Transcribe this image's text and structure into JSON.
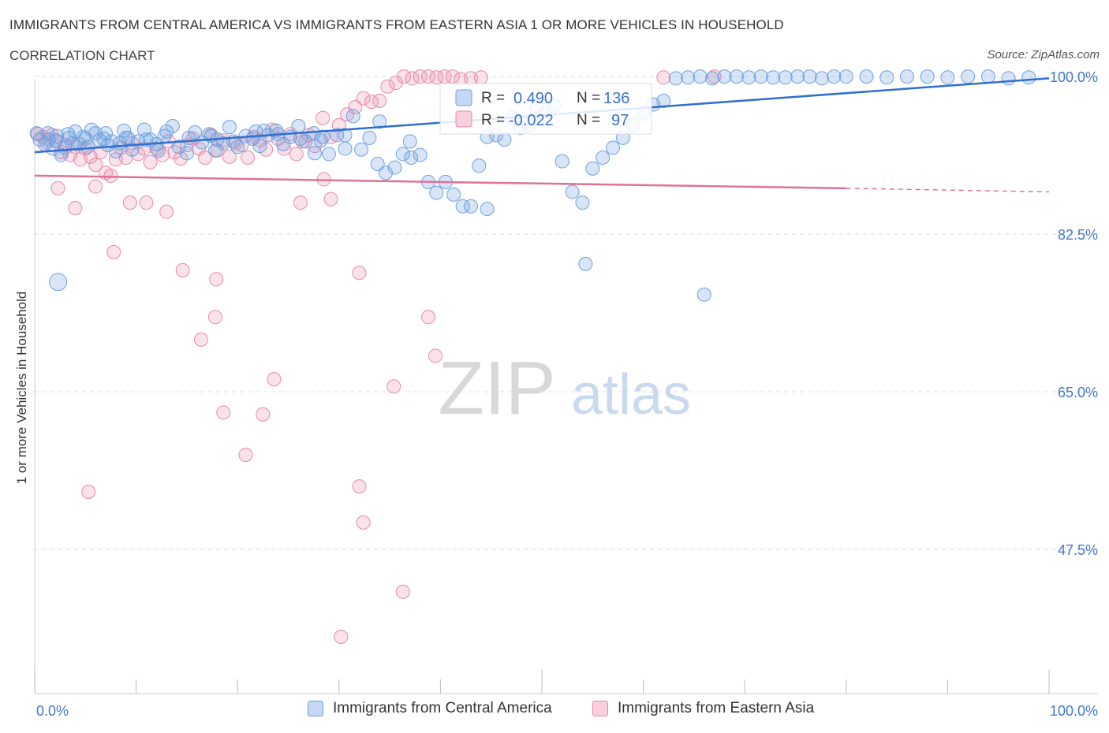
{
  "header": {
    "title": "IMMIGRANTS FROM CENTRAL AMERICA VS IMMIGRANTS FROM EASTERN ASIA 1 OR MORE VEHICLES IN HOUSEHOLD",
    "subtitle": "CORRELATION CHART",
    "source": "Source: ZipAtlas.com"
  },
  "watermark": {
    "zip": "ZIP",
    "atlas": "atlas"
  },
  "colors": {
    "blue": "#6fa1e0",
    "blue_fill": "rgba(111,161,224,0.28)",
    "blue_line": "#2f6fd0",
    "pink": "#e88aaa",
    "pink_fill": "rgba(232,138,170,0.25)",
    "pink_line": "#e0729a",
    "axis_text": "#4477cc",
    "grid": "#dddddd"
  },
  "legend_box": {
    "rows": [
      {
        "r_label": "R =",
        "r_value": "0.490",
        "n_label": "N =",
        "n_value": "136"
      },
      {
        "r_label": "R =",
        "r_value": "-0.022",
        "n_label": "N =",
        "n_value": "97"
      }
    ]
  },
  "bottom_legend": [
    "Immigrants from Central America",
    "Immigrants from Eastern Asia"
  ],
  "chart_data": {
    "type": "scatter",
    "xlabel": "",
    "ylabel": "1 or more Vehicles in Household",
    "xlim": [
      0,
      100
    ],
    "ylim": [
      31.5,
      101.5
    ],
    "x_tick_labels": [
      "0.0%",
      "100.0%"
    ],
    "y_ticks": [
      47.5,
      65.0,
      82.5,
      100.0
    ],
    "y_tick_labels": [
      "47.5%",
      "65.0%",
      "82.5%",
      "100.0%"
    ],
    "grid": true,
    "series": [
      {
        "name": "Immigrants from Central America",
        "trend": {
          "x": [
            0,
            100
          ],
          "y": [
            91.6,
            99.8
          ]
        },
        "points": [
          [
            0.2,
            93.7
          ],
          [
            0.5,
            93.0
          ],
          [
            1.0,
            92.5
          ],
          [
            1.4,
            93.0
          ],
          [
            1.8,
            92.0
          ],
          [
            2.2,
            93.4
          ],
          [
            2.6,
            91.3
          ],
          [
            3.0,
            92.1
          ],
          [
            3.4,
            93.2
          ],
          [
            3.7,
            92.6
          ],
          [
            4.0,
            93.9
          ],
          [
            4.4,
            92.5
          ],
          [
            4.8,
            93.3
          ],
          [
            5.2,
            92.2
          ],
          [
            5.6,
            94.1
          ],
          [
            6.0,
            93.7
          ],
          [
            6.4,
            92.9
          ],
          [
            6.8,
            93.1
          ],
          [
            7.2,
            92.4
          ],
          [
            7.6,
            92.8
          ],
          [
            8.0,
            91.7
          ],
          [
            8.4,
            92.6
          ],
          [
            8.8,
            94.0
          ],
          [
            9.2,
            93.2
          ],
          [
            9.6,
            91.9
          ],
          [
            10.2,
            92.8
          ],
          [
            10.8,
            94.1
          ],
          [
            11.4,
            93.0
          ],
          [
            12.0,
            92.5
          ],
          [
            12.8,
            93.4
          ],
          [
            13.6,
            94.5
          ],
          [
            14.2,
            92.2
          ],
          [
            15.0,
            91.5
          ],
          [
            15.8,
            93.8
          ],
          [
            16.5,
            92.7
          ],
          [
            17.2,
            93.6
          ],
          [
            18.0,
            93.0
          ],
          [
            18.6,
            92.6
          ],
          [
            19.2,
            94.4
          ],
          [
            20.0,
            92.2
          ],
          [
            20.8,
            93.4
          ],
          [
            21.5,
            93.1
          ],
          [
            22.2,
            92.3
          ],
          [
            23.0,
            93.5
          ],
          [
            23.8,
            94.0
          ],
          [
            24.5,
            92.5
          ],
          [
            25.2,
            93.3
          ],
          [
            26.0,
            94.5
          ],
          [
            26.7,
            92.8
          ],
          [
            27.5,
            93.7
          ],
          [
            28.2,
            92.9
          ],
          [
            29.0,
            91.4
          ],
          [
            29.8,
            93.5
          ],
          [
            30.6,
            92.0
          ],
          [
            31.4,
            95.6
          ],
          [
            32.2,
            91.9
          ],
          [
            33.0,
            93.2
          ],
          [
            33.8,
            90.3
          ],
          [
            34.6,
            89.3
          ],
          [
            35.5,
            89.9
          ],
          [
            36.3,
            91.4
          ],
          [
            37.1,
            91.0
          ],
          [
            38.0,
            91.3
          ],
          [
            38.8,
            88.3
          ],
          [
            39.6,
            87.1
          ],
          [
            40.5,
            88.3
          ],
          [
            41.3,
            86.9
          ],
          [
            42.2,
            85.6
          ],
          [
            43.0,
            85.6
          ],
          [
            43.8,
            90.1
          ],
          [
            44.6,
            93.3
          ],
          [
            45.5,
            93.5
          ],
          [
            46.3,
            93.0
          ],
          [
            47.1,
            95.4
          ],
          [
            47.9,
            94.3
          ],
          [
            48.7,
            94.6
          ],
          [
            49.5,
            96.7
          ],
          [
            50.3,
            95.9
          ],
          [
            51.2,
            96.8
          ],
          [
            52.0,
            90.6
          ],
          [
            53.0,
            87.2
          ],
          [
            54.0,
            86.0
          ],
          [
            55.0,
            89.8
          ],
          [
            56.0,
            91.0
          ],
          [
            57.0,
            92.1
          ],
          [
            58.0,
            93.2
          ],
          [
            59.0,
            94.6
          ],
          [
            60.0,
            95.9
          ],
          [
            61.0,
            96.9
          ],
          [
            62.0,
            97.3
          ],
          [
            63.2,
            99.8
          ],
          [
            64.4,
            99.9
          ],
          [
            65.6,
            100.0
          ],
          [
            66.8,
            99.8
          ],
          [
            68.0,
            100.0
          ],
          [
            69.2,
            100.0
          ],
          [
            70.4,
            99.9
          ],
          [
            71.6,
            100.0
          ],
          [
            72.8,
            99.9
          ],
          [
            74.0,
            99.9
          ],
          [
            75.2,
            100.0
          ],
          [
            76.4,
            100.0
          ],
          [
            77.6,
            99.8
          ],
          [
            78.8,
            100.0
          ],
          [
            80.0,
            100.0
          ],
          [
            82.0,
            100.0
          ],
          [
            84.0,
            99.9
          ],
          [
            86.0,
            100.0
          ],
          [
            88.0,
            100.0
          ],
          [
            90.0,
            99.9
          ],
          [
            92.0,
            100.0
          ],
          [
            94.0,
            100.0
          ],
          [
            96.0,
            99.8
          ],
          [
            98.0,
            99.9
          ],
          [
            1.3,
            93.7
          ],
          [
            2.1,
            92.9
          ],
          [
            3.3,
            93.6
          ],
          [
            5.0,
            93.1
          ],
          [
            7.0,
            93.7
          ],
          [
            9.0,
            93.2
          ],
          [
            11.0,
            93.0
          ],
          [
            13.0,
            93.9
          ],
          [
            15.2,
            93.2
          ],
          [
            17.4,
            93.4
          ],
          [
            19.6,
            92.8
          ],
          [
            21.8,
            93.9
          ],
          [
            24.0,
            93.6
          ],
          [
            26.2,
            93.1
          ],
          [
            28.4,
            93.3
          ],
          [
            30.6,
            93.5
          ],
          [
            12.2,
            91.8
          ],
          [
            17.8,
            91.8
          ],
          [
            22.6,
            94.0
          ],
          [
            27.6,
            91.5
          ],
          [
            34.0,
            95.0
          ],
          [
            37.0,
            92.8
          ],
          [
            44.6,
            85.3
          ],
          [
            54.3,
            79.2
          ],
          [
            66.0,
            75.8
          ],
          [
            2.3,
            77.2
          ]
        ]
      },
      {
        "name": "Immigrants from Eastern Asia",
        "trend": {
          "x": [
            0,
            80
          ],
          "y": [
            89.0,
            87.6
          ]
        },
        "trend_dashed": {
          "x": [
            80,
            100
          ],
          "y": [
            87.6,
            87.2
          ]
        },
        "points": [
          [
            0.3,
            93.6
          ],
          [
            0.8,
            93.3
          ],
          [
            1.2,
            92.7
          ],
          [
            1.7,
            93.5
          ],
          [
            2.1,
            92.8
          ],
          [
            2.6,
            91.6
          ],
          [
            3.0,
            92.4
          ],
          [
            3.5,
            91.3
          ],
          [
            4.0,
            92.2
          ],
          [
            4.5,
            90.8
          ],
          [
            5.0,
            92.0
          ],
          [
            5.5,
            91.1
          ],
          [
            6.0,
            90.2
          ],
          [
            6.5,
            91.6
          ],
          [
            7.0,
            89.3
          ],
          [
            7.5,
            89.0
          ],
          [
            8.0,
            90.8
          ],
          [
            8.5,
            92.1
          ],
          [
            9.0,
            91.0
          ],
          [
            9.6,
            92.6
          ],
          [
            10.2,
            91.4
          ],
          [
            10.8,
            92.0
          ],
          [
            11.4,
            90.5
          ],
          [
            12.0,
            92.0
          ],
          [
            12.6,
            91.3
          ],
          [
            13.2,
            92.8
          ],
          [
            13.8,
            91.6
          ],
          [
            14.4,
            90.9
          ],
          [
            15.0,
            92.4
          ],
          [
            15.6,
            93.1
          ],
          [
            16.2,
            92.0
          ],
          [
            16.8,
            91.0
          ],
          [
            17.4,
            93.5
          ],
          [
            18.0,
            91.8
          ],
          [
            18.6,
            92.9
          ],
          [
            19.2,
            91.1
          ],
          [
            19.8,
            92.6
          ],
          [
            20.4,
            92.4
          ],
          [
            21.0,
            91.0
          ],
          [
            21.6,
            93.3
          ],
          [
            22.2,
            92.9
          ],
          [
            22.8,
            91.9
          ],
          [
            23.4,
            94.1
          ],
          [
            24.0,
            93.1
          ],
          [
            24.6,
            92.0
          ],
          [
            25.2,
            93.6
          ],
          [
            25.8,
            91.4
          ],
          [
            26.4,
            92.8
          ],
          [
            27.0,
            93.5
          ],
          [
            27.6,
            92.3
          ],
          [
            28.4,
            95.4
          ],
          [
            29.2,
            93.3
          ],
          [
            30.0,
            94.6
          ],
          [
            30.8,
            95.8
          ],
          [
            31.6,
            96.6
          ],
          [
            32.4,
            97.6
          ],
          [
            33.2,
            97.2
          ],
          [
            34.0,
            97.3
          ],
          [
            34.8,
            98.9
          ],
          [
            35.6,
            99.3
          ],
          [
            36.4,
            100.0
          ],
          [
            37.2,
            99.8
          ],
          [
            38.0,
            100.0
          ],
          [
            38.8,
            100.0
          ],
          [
            39.6,
            99.9
          ],
          [
            40.4,
            100.0
          ],
          [
            41.2,
            100.0
          ],
          [
            42.0,
            99.7
          ],
          [
            43.0,
            99.8
          ],
          [
            44.0,
            99.9
          ],
          [
            62.0,
            99.9
          ],
          [
            67.0,
            100.0
          ],
          [
            2.3,
            87.6
          ],
          [
            4.0,
            85.4
          ],
          [
            6.0,
            87.8
          ],
          [
            7.8,
            80.5
          ],
          [
            9.4,
            86.0
          ],
          [
            11.0,
            86.0
          ],
          [
            13.0,
            85.0
          ],
          [
            14.6,
            78.5
          ],
          [
            16.4,
            70.8
          ],
          [
            17.8,
            73.3
          ],
          [
            18.6,
            62.7
          ],
          [
            20.8,
            58.0
          ],
          [
            22.5,
            62.5
          ],
          [
            23.6,
            66.4
          ],
          [
            26.2,
            86.0
          ],
          [
            28.5,
            88.6
          ],
          [
            29.2,
            86.4
          ],
          [
            32.0,
            78.2
          ],
          [
            35.4,
            65.6
          ],
          [
            38.8,
            73.3
          ],
          [
            39.5,
            69.0
          ],
          [
            5.3,
            53.9
          ],
          [
            17.9,
            77.5
          ],
          [
            32.0,
            54.5
          ],
          [
            30.2,
            37.8
          ],
          [
            32.4,
            50.5
          ],
          [
            36.3,
            42.8
          ]
        ]
      }
    ]
  }
}
